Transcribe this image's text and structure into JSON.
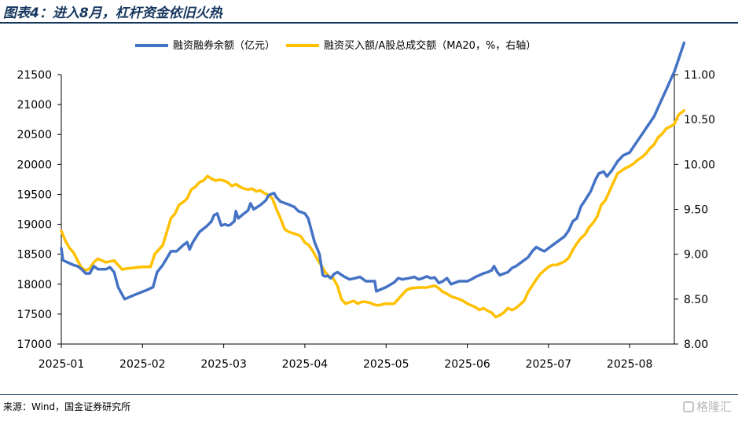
{
  "header": {
    "title": "图表4：进入8月，杠杆资金依旧火热"
  },
  "footer": {
    "source": "来源：Wind，国金证券研究所",
    "watermark": "格隆汇"
  },
  "colors": {
    "blue": "#4472c4",
    "yellow": "#ffc000",
    "brand": "#17375e"
  },
  "chart_data": {
    "type": "line",
    "title": "图表4：进入8月，杠杆资金依旧火热",
    "legend_placement": "top-center",
    "grid": false,
    "x_ticks": [
      "2025-01",
      "2025-02",
      "2025-03",
      "2025-04",
      "2025-05",
      "2025-06",
      "2025-07",
      "2025-08"
    ],
    "x_range": [
      0,
      7.55
    ],
    "y_left": {
      "ticks": [
        "17000",
        "17500",
        "18000",
        "18500",
        "19000",
        "19500",
        "20000",
        "20500",
        "21000",
        "21500"
      ],
      "range": [
        17000,
        21500
      ]
    },
    "y_right": {
      "ticks": [
        "8.00",
        "8.50",
        "9.00",
        "9.50",
        "10.00",
        "10.50",
        "11.00"
      ],
      "range": [
        8.0,
        11.0
      ]
    },
    "series": [
      {
        "name": "融资融券余额（亿元）",
        "axis": "left",
        "color": "#4472c4",
        "points": [
          [
            0.0,
            18600
          ],
          [
            0.02,
            18400
          ],
          [
            0.1,
            18350
          ],
          [
            0.15,
            18320
          ],
          [
            0.2,
            18300
          ],
          [
            0.25,
            18250
          ],
          [
            0.3,
            18180
          ],
          [
            0.35,
            18180
          ],
          [
            0.4,
            18300
          ],
          [
            0.45,
            18250
          ],
          [
            0.5,
            18250
          ],
          [
            0.55,
            18250
          ],
          [
            0.6,
            18280
          ],
          [
            0.65,
            18200
          ],
          [
            0.7,
            17950
          ],
          [
            0.78,
            17750
          ],
          [
            0.9,
            17820
          ],
          [
            1.05,
            17900
          ],
          [
            1.13,
            17950
          ],
          [
            1.18,
            18200
          ],
          [
            1.25,
            18320
          ],
          [
            1.35,
            18550
          ],
          [
            1.42,
            18550
          ],
          [
            1.5,
            18650
          ],
          [
            1.55,
            18700
          ],
          [
            1.58,
            18580
          ],
          [
            1.62,
            18700
          ],
          [
            1.7,
            18870
          ],
          [
            1.8,
            18980
          ],
          [
            1.85,
            19050
          ],
          [
            1.88,
            19150
          ],
          [
            1.92,
            19180
          ],
          [
            1.97,
            18980
          ],
          [
            2.02,
            19000
          ],
          [
            2.05,
            18980
          ],
          [
            2.08,
            18990
          ],
          [
            2.13,
            19050
          ],
          [
            2.15,
            19220
          ],
          [
            2.18,
            19100
          ],
          [
            2.25,
            19180
          ],
          [
            2.3,
            19230
          ],
          [
            2.33,
            19350
          ],
          [
            2.37,
            19250
          ],
          [
            2.45,
            19320
          ],
          [
            2.52,
            19400
          ],
          [
            2.55,
            19480
          ],
          [
            2.58,
            19500
          ],
          [
            2.62,
            19520
          ],
          [
            2.65,
            19450
          ],
          [
            2.7,
            19380
          ],
          [
            2.8,
            19330
          ],
          [
            2.87,
            19290
          ],
          [
            2.92,
            19220
          ],
          [
            3.0,
            19180
          ],
          [
            3.04,
            19100
          ],
          [
            3.08,
            18900
          ],
          [
            3.12,
            18700
          ],
          [
            3.18,
            18500
          ],
          [
            3.22,
            18150
          ],
          [
            3.25,
            18130
          ],
          [
            3.28,
            18140
          ],
          [
            3.32,
            18100
          ],
          [
            3.36,
            18170
          ],
          [
            3.4,
            18200
          ],
          [
            3.48,
            18130
          ],
          [
            3.55,
            18080
          ],
          [
            3.62,
            18100
          ],
          [
            3.68,
            18120
          ],
          [
            3.75,
            18050
          ],
          [
            3.82,
            18050
          ],
          [
            3.86,
            18050
          ],
          [
            3.88,
            17880
          ],
          [
            4.0,
            17950
          ],
          [
            4.1,
            18030
          ],
          [
            4.15,
            18100
          ],
          [
            4.2,
            18080
          ],
          [
            4.28,
            18100
          ],
          [
            4.35,
            18120
          ],
          [
            4.4,
            18080
          ],
          [
            4.45,
            18100
          ],
          [
            4.5,
            18130
          ],
          [
            4.55,
            18100
          ],
          [
            4.6,
            18110
          ],
          [
            4.65,
            18020
          ],
          [
            4.7,
            18050
          ],
          [
            4.75,
            18100
          ],
          [
            4.8,
            18000
          ],
          [
            4.9,
            18050
          ],
          [
            5.0,
            18050
          ],
          [
            5.05,
            18080
          ],
          [
            5.1,
            18120
          ],
          [
            5.15,
            18150
          ],
          [
            5.2,
            18180
          ],
          [
            5.25,
            18200
          ],
          [
            5.3,
            18230
          ],
          [
            5.33,
            18300
          ],
          [
            5.37,
            18200
          ],
          [
            5.4,
            18150
          ],
          [
            5.5,
            18200
          ],
          [
            5.55,
            18270
          ],
          [
            5.6,
            18300
          ],
          [
            5.65,
            18350
          ],
          [
            5.7,
            18400
          ],
          [
            5.75,
            18450
          ],
          [
            5.8,
            18550
          ],
          [
            5.85,
            18620
          ],
          [
            5.9,
            18580
          ],
          [
            5.95,
            18550
          ],
          [
            6.0,
            18600
          ],
          [
            6.05,
            18650
          ],
          [
            6.1,
            18700
          ],
          [
            6.2,
            18800
          ],
          [
            6.25,
            18900
          ],
          [
            6.3,
            19050
          ],
          [
            6.35,
            19100
          ],
          [
            6.4,
            19300
          ],
          [
            6.45,
            19400
          ],
          [
            6.52,
            19550
          ],
          [
            6.58,
            19750
          ],
          [
            6.62,
            19850
          ],
          [
            6.68,
            19880
          ],
          [
            6.72,
            19800
          ],
          [
            6.78,
            19900
          ],
          [
            6.85,
            20050
          ],
          [
            6.92,
            20150
          ],
          [
            7.0,
            20200
          ],
          [
            7.05,
            20300
          ],
          [
            7.1,
            20400
          ],
          [
            7.15,
            20500
          ],
          [
            7.2,
            20600
          ],
          [
            7.25,
            20700
          ],
          [
            7.3,
            20800
          ],
          [
            7.35,
            20950
          ],
          [
            7.4,
            21100
          ],
          [
            7.45,
            21250
          ],
          [
            7.5,
            21400
          ],
          [
            7.55,
            21550
          ],
          [
            7.6,
            21750
          ],
          [
            7.67,
            22030
          ]
        ]
      },
      {
        "name": "融资买入额/A股总成交额（MA20，%，右轴）",
        "axis": "right",
        "color": "#ffc000",
        "points": [
          [
            0.0,
            9.26
          ],
          [
            0.05,
            9.15
          ],
          [
            0.1,
            9.07
          ],
          [
            0.15,
            9.02
          ],
          [
            0.2,
            8.93
          ],
          [
            0.25,
            8.85
          ],
          [
            0.3,
            8.82
          ],
          [
            0.35,
            8.84
          ],
          [
            0.4,
            8.91
          ],
          [
            0.45,
            8.95
          ],
          [
            0.5,
            8.93
          ],
          [
            0.55,
            8.91
          ],
          [
            0.6,
            8.92
          ],
          [
            0.65,
            8.93
          ],
          [
            0.7,
            8.88
          ],
          [
            0.75,
            8.83
          ],
          [
            0.8,
            8.84
          ],
          [
            1.0,
            8.86
          ],
          [
            1.05,
            8.86
          ],
          [
            1.1,
            8.86
          ],
          [
            1.15,
            9.0
          ],
          [
            1.2,
            9.05
          ],
          [
            1.25,
            9.1
          ],
          [
            1.3,
            9.25
          ],
          [
            1.35,
            9.4
          ],
          [
            1.4,
            9.45
          ],
          [
            1.45,
            9.55
          ],
          [
            1.5,
            9.58
          ],
          [
            1.55,
            9.62
          ],
          [
            1.6,
            9.72
          ],
          [
            1.65,
            9.75
          ],
          [
            1.7,
            9.8
          ],
          [
            1.75,
            9.82
          ],
          [
            1.8,
            9.87
          ],
          [
            1.85,
            9.84
          ],
          [
            1.9,
            9.82
          ],
          [
            1.95,
            9.83
          ],
          [
            2.0,
            9.82
          ],
          [
            2.05,
            9.8
          ],
          [
            2.1,
            9.76
          ],
          [
            2.15,
            9.78
          ],
          [
            2.2,
            9.75
          ],
          [
            2.25,
            9.73
          ],
          [
            2.3,
            9.72
          ],
          [
            2.35,
            9.73
          ],
          [
            2.4,
            9.7
          ],
          [
            2.45,
            9.71
          ],
          [
            2.5,
            9.68
          ],
          [
            2.55,
            9.66
          ],
          [
            2.6,
            9.62
          ],
          [
            2.65,
            9.5
          ],
          [
            2.7,
            9.4
          ],
          [
            2.75,
            9.28
          ],
          [
            2.8,
            9.25
          ],
          [
            2.9,
            9.22
          ],
          [
            2.95,
            9.2
          ],
          [
            3.0,
            9.13
          ],
          [
            3.05,
            9.1
          ],
          [
            3.1,
            9.03
          ],
          [
            3.15,
            8.95
          ],
          [
            3.2,
            8.88
          ],
          [
            3.25,
            8.8
          ],
          [
            3.3,
            8.75
          ],
          [
            3.35,
            8.73
          ],
          [
            3.4,
            8.65
          ],
          [
            3.45,
            8.5
          ],
          [
            3.5,
            8.45
          ],
          [
            3.6,
            8.48
          ],
          [
            3.65,
            8.45
          ],
          [
            3.7,
            8.47
          ],
          [
            3.75,
            8.47
          ],
          [
            3.8,
            8.46
          ],
          [
            3.85,
            8.44
          ],
          [
            3.9,
            8.43
          ],
          [
            4.0,
            8.45
          ],
          [
            4.1,
            8.45
          ],
          [
            4.15,
            8.5
          ],
          [
            4.2,
            8.55
          ],
          [
            4.25,
            8.6
          ],
          [
            4.3,
            8.62
          ],
          [
            4.4,
            8.63
          ],
          [
            4.5,
            8.63
          ],
          [
            4.6,
            8.65
          ],
          [
            4.65,
            8.62
          ],
          [
            4.7,
            8.58
          ],
          [
            4.75,
            8.56
          ],
          [
            4.8,
            8.53
          ],
          [
            4.9,
            8.5
          ],
          [
            4.95,
            8.48
          ],
          [
            5.0,
            8.45
          ],
          [
            5.05,
            8.43
          ],
          [
            5.1,
            8.41
          ],
          [
            5.15,
            8.38
          ],
          [
            5.2,
            8.4
          ],
          [
            5.25,
            8.37
          ],
          [
            5.3,
            8.35
          ],
          [
            5.35,
            8.3
          ],
          [
            5.4,
            8.32
          ],
          [
            5.45,
            8.35
          ],
          [
            5.5,
            8.4
          ],
          [
            5.55,
            8.38
          ],
          [
            5.6,
            8.4
          ],
          [
            5.7,
            8.48
          ],
          [
            5.75,
            8.58
          ],
          [
            5.8,
            8.65
          ],
          [
            5.85,
            8.72
          ],
          [
            5.9,
            8.78
          ],
          [
            5.95,
            8.82
          ],
          [
            6.0,
            8.86
          ],
          [
            6.05,
            8.88
          ],
          [
            6.1,
            8.88
          ],
          [
            6.15,
            8.9
          ],
          [
            6.2,
            8.92
          ],
          [
            6.25,
            8.96
          ],
          [
            6.3,
            9.05
          ],
          [
            6.35,
            9.12
          ],
          [
            6.4,
            9.18
          ],
          [
            6.45,
            9.22
          ],
          [
            6.5,
            9.3
          ],
          [
            6.55,
            9.35
          ],
          [
            6.6,
            9.42
          ],
          [
            6.65,
            9.55
          ],
          [
            6.7,
            9.6
          ],
          [
            6.75,
            9.7
          ],
          [
            6.8,
            9.8
          ],
          [
            6.85,
            9.9
          ],
          [
            6.9,
            9.93
          ],
          [
            6.95,
            9.96
          ],
          [
            7.0,
            9.98
          ],
          [
            7.05,
            10.01
          ],
          [
            7.1,
            10.05
          ],
          [
            7.15,
            10.08
          ],
          [
            7.2,
            10.12
          ],
          [
            7.25,
            10.18
          ],
          [
            7.3,
            10.22
          ],
          [
            7.35,
            10.3
          ],
          [
            7.4,
            10.34
          ],
          [
            7.45,
            10.4
          ],
          [
            7.5,
            10.42
          ],
          [
            7.55,
            10.45
          ],
          [
            7.6,
            10.55
          ],
          [
            7.67,
            10.6
          ]
        ]
      }
    ]
  }
}
